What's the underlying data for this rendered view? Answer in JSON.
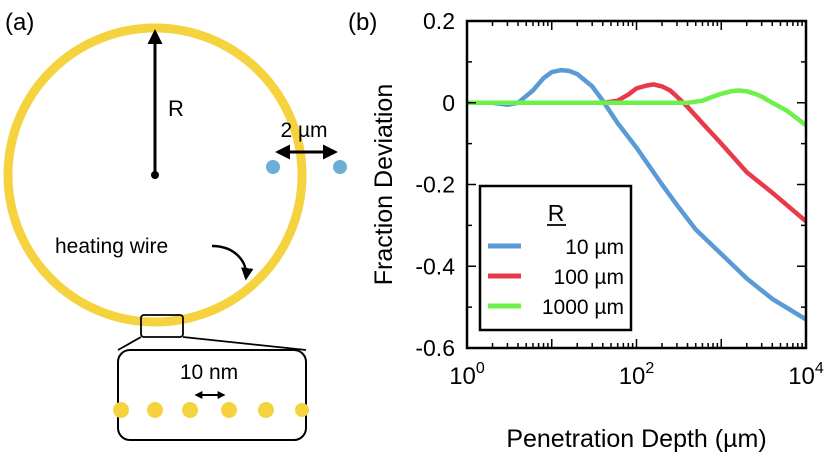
{
  "panel_a": {
    "label": "(a)",
    "radius_label": "R",
    "sensor_spacing_label": "2 µm",
    "wire_label": "heating wire",
    "inset_spacing_label": "10 nm",
    "colors": {
      "wire": "#f5d33f",
      "sensor": "#6baed6",
      "line": "#000000"
    }
  },
  "panel_b": {
    "label": "(b)"
  },
  "chart_data": {
    "type": "line",
    "xlabel": "Penetration Depth (µm)",
    "ylabel": "Fraction Deviation",
    "xscale": "log",
    "xlim": [
      1,
      10000
    ],
    "ylim": [
      -0.6,
      0.2
    ],
    "xticks": [
      {
        "value": 1,
        "base": "10",
        "exp": "0"
      },
      {
        "value": 100,
        "base": "10",
        "exp": "2"
      },
      {
        "value": 10000,
        "base": "10",
        "exp": "4"
      }
    ],
    "yticks": [
      {
        "value": 0.2,
        "label": "0.2"
      },
      {
        "value": 0,
        "label": "0"
      },
      {
        "value": -0.2,
        "label": "-0.2"
      },
      {
        "value": -0.4,
        "label": "-0.4"
      },
      {
        "value": -0.6,
        "label": "-0.6"
      }
    ],
    "legend": {
      "title": "R",
      "position": "bottom-left"
    },
    "series": [
      {
        "name": "10 µm",
        "color": "#5b9bd5",
        "x": [
          1,
          2,
          3,
          4,
          6,
          8,
          10,
          13,
          16,
          20,
          30,
          40,
          60,
          100,
          200,
          300,
          500,
          1000,
          2000,
          4000,
          10000
        ],
        "y": [
          0.0,
          0.0,
          -0.005,
          0.0,
          0.03,
          0.06,
          0.075,
          0.08,
          0.078,
          0.07,
          0.04,
          0.005,
          -0.05,
          -0.11,
          -0.2,
          -0.25,
          -0.31,
          -0.37,
          -0.43,
          -0.48,
          -0.53
        ]
      },
      {
        "name": "100 µm",
        "color": "#e83a4a",
        "x": [
          1,
          10,
          40,
          60,
          80,
          100,
          130,
          160,
          200,
          250,
          300,
          400,
          600,
          1000,
          2000,
          4000,
          10000
        ],
        "y": [
          0.0,
          0.0,
          0.0,
          0.005,
          0.02,
          0.035,
          0.042,
          0.045,
          0.04,
          0.03,
          0.015,
          -0.01,
          -0.05,
          -0.1,
          -0.17,
          -0.22,
          -0.29
        ]
      },
      {
        "name": "1000 µm",
        "color": "#6cf04a",
        "x": [
          1,
          100,
          400,
          600,
          800,
          1000,
          1300,
          1600,
          2000,
          2500,
          3000,
          4000,
          6000,
          10000
        ],
        "y": [
          0.0,
          0.0,
          0.0,
          0.005,
          0.015,
          0.022,
          0.028,
          0.03,
          0.028,
          0.022,
          0.015,
          0.0,
          -0.02,
          -0.055
        ]
      }
    ]
  }
}
